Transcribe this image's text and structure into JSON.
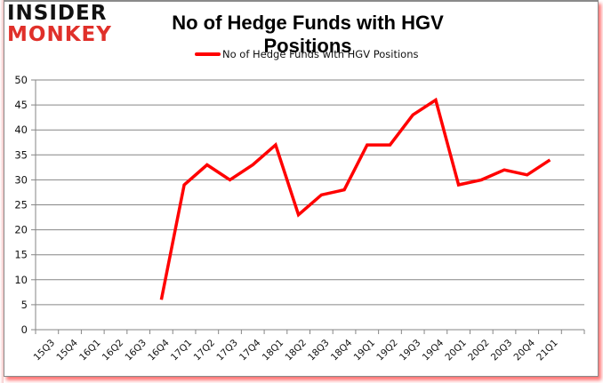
{
  "logo": {
    "line1": "INSIDER",
    "line2": "MONKEY"
  },
  "chart_data": {
    "type": "line",
    "title": "No of Hedge Funds with HGV Positions",
    "xlabel": "",
    "ylabel": "",
    "ylim": [
      0,
      50
    ],
    "yticks": [
      0,
      5,
      10,
      15,
      20,
      25,
      30,
      35,
      40,
      45,
      50
    ],
    "grid": true,
    "legend_position": "top",
    "categories": [
      "15Q3",
      "15Q4",
      "16Q1",
      "16Q2",
      "16Q3",
      "16Q4",
      "17Q1",
      "17Q2",
      "17Q3",
      "17Q4",
      "18Q1",
      "18Q2",
      "18Q3",
      "18Q4",
      "19Q1",
      "19Q2",
      "19Q3",
      "19Q4",
      "20Q1",
      "20Q2",
      "20Q3",
      "20Q4",
      "21Q1"
    ],
    "series": [
      {
        "name": "No of Hedge Funds with HGV Positions",
        "color": "#ff0000",
        "values": [
          null,
          null,
          null,
          null,
          null,
          6,
          29,
          33,
          30,
          33,
          37,
          23,
          27,
          28,
          37,
          37,
          43,
          46,
          29,
          30,
          32,
          31,
          34
        ]
      }
    ]
  },
  "colors": {
    "line": "#ff0000",
    "grid": "#868686",
    "logo_accent": "#e0302a",
    "shadow": "#ff0000"
  }
}
